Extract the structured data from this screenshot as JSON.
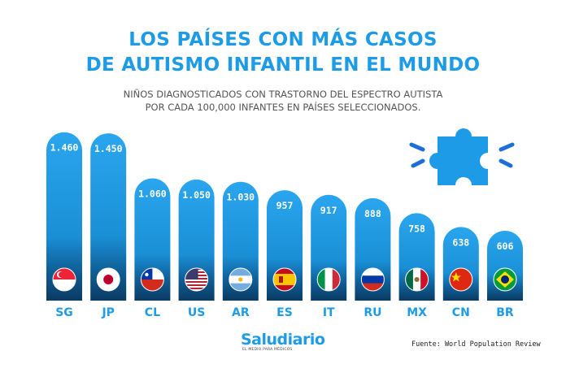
{
  "title_lines": [
    "LOS PAÍSES CON MÁS CASOS",
    "DE AUTISMO INFANTIL EN EL MUNDO"
  ],
  "subtitle_lines": [
    "NIÑOS DIAGNOSTICADOS CON TRASTORNO DEL ESPECTRO AUTISTA",
    "POR CADA 100,000 INFANTES EN PAÍSES SELECCIONADOS."
  ],
  "colors": {
    "accent": "#1d9be6",
    "bar_top": "#2aa6ee",
    "bar_bottom": "#0a3b63",
    "label": "#1d9be6"
  },
  "logo": {
    "name": "Saludiario",
    "tagline": "EL MEDIO PARA MÉDICOS"
  },
  "source": "Fuente: World Population Review",
  "puzzle_icon": "puzzle-piece-icon",
  "chart_data": {
    "type": "bar",
    "categories": [
      "SG",
      "JP",
      "CL",
      "US",
      "AR",
      "ES",
      "IT",
      "RU",
      "MX",
      "CN",
      "BR"
    ],
    "values": [
      1460,
      1450,
      1060,
      1050,
      1030,
      957,
      917,
      888,
      758,
      638,
      606
    ],
    "value_labels": [
      "1.460",
      "1.450",
      "1.060",
      "1.050",
      "1.030",
      "957",
      "917",
      "888",
      "758",
      "638",
      "606"
    ],
    "flags": [
      "singapore-flag-icon",
      "japan-flag-icon",
      "chile-flag-icon",
      "usa-flag-icon",
      "argentina-flag-icon",
      "spain-flag-icon",
      "italy-flag-icon",
      "russia-flag-icon",
      "mexico-flag-icon",
      "china-flag-icon",
      "brazil-flag-icon"
    ],
    "ylim": [
      0,
      1500
    ],
    "grid": false,
    "legend": "none"
  }
}
